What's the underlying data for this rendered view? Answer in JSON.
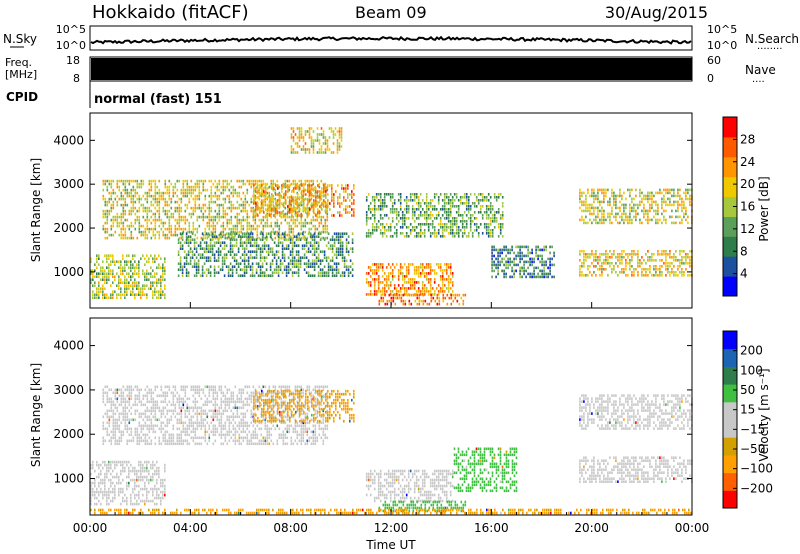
{
  "header": {
    "station": "Hokkaido (fitACF)",
    "beam": "Beam 09",
    "date": "30/Aug/2015"
  },
  "noise_panel": {
    "left_label": "N.Sky",
    "left_ticks": [
      "10^5",
      "10^0"
    ],
    "right_ticks": [
      "10^5",
      "10^0"
    ],
    "right_label": "N.Search",
    "right_dots": "........"
  },
  "freq_panel": {
    "left_label_1": "Freq.",
    "left_label_2": "[MHz]",
    "left_ticks": [
      "18",
      "8"
    ],
    "right_ticks": [
      "60",
      "0"
    ],
    "right_label": "Nave",
    "right_dots": "....",
    "color_fill": "#000000"
  },
  "cpid_panel": {
    "label": "CPID",
    "mode_text": "normal (fast) 151"
  },
  "chart_data": [
    {
      "type": "heatmap",
      "id": "power",
      "ylabel": "Slant Range [km]",
      "ylim": [
        200,
        4600
      ],
      "yticks": [
        "1000",
        "2000",
        "3000",
        "4000"
      ],
      "xlim": [
        "00:00",
        "24:00"
      ],
      "colorbar": {
        "label": "Power [dB]",
        "ticks": [
          "28",
          "24",
          "20",
          "16",
          "12",
          "8",
          "4"
        ],
        "colors": [
          "#0000ff",
          "#1e50a0",
          "#2e7d4a",
          "#5aa05a",
          "#a5c83c",
          "#f0c800",
          "#ff9600",
          "#ff5a00",
          "#ff0000"
        ]
      },
      "echo_regions": [
        {
          "t0": 0.0,
          "t1": 3.0,
          "r0": 400,
          "r1": 1400,
          "level": 18
        },
        {
          "t0": 0.5,
          "t1": 9.5,
          "r0": 1800,
          "r1": 3100,
          "level": 20
        },
        {
          "t0": 3.5,
          "t1": 10.5,
          "r0": 900,
          "r1": 1900,
          "level": 12
        },
        {
          "t0": 6.5,
          "t1": 10.5,
          "r0": 2300,
          "r1": 3000,
          "level": 26
        },
        {
          "t0": 8.0,
          "t1": 10.0,
          "r0": 3700,
          "r1": 4300,
          "level": 22
        },
        {
          "t0": 11.0,
          "t1": 14.5,
          "r0": 500,
          "r1": 1200,
          "level": 26
        },
        {
          "t0": 11.5,
          "t1": 15.0,
          "r0": 250,
          "r1": 500,
          "level": 28
        },
        {
          "t0": 11.0,
          "t1": 16.5,
          "r0": 1800,
          "r1": 2800,
          "level": 14
        },
        {
          "t0": 16.0,
          "t1": 18.5,
          "r0": 900,
          "r1": 1600,
          "level": 10
        },
        {
          "t0": 19.5,
          "t1": 24.0,
          "r0": 900,
          "r1": 1500,
          "level": 22
        },
        {
          "t0": 19.5,
          "t1": 24.0,
          "r0": 2100,
          "r1": 2900,
          "level": 20
        }
      ]
    },
    {
      "type": "heatmap",
      "id": "velocity",
      "ylabel": "Slant Range [km]",
      "xlabel": "Time UT",
      "ylim": [
        200,
        4600
      ],
      "yticks": [
        "1000",
        "2000",
        "3000",
        "4000"
      ],
      "xticks": [
        "00:00",
        "04:00",
        "08:00",
        "12:00",
        "16:00",
        "20:00",
        "00:00"
      ],
      "colorbar": {
        "label": "Velocity [m s⁻¹]",
        "ticks": [
          "200",
          "100",
          "50",
          "15",
          "−15",
          "−50",
          "−100",
          "−200"
        ],
        "colors": [
          "#ff0000",
          "#ff6000",
          "#ffa000",
          "#d2a000",
          "#c8c8c8",
          "#c8c8c8",
          "#40c040",
          "#2e7d4a",
          "#1e64b4",
          "#0000ff"
        ]
      },
      "echo_regions": [
        {
          "t0": 0.0,
          "t1": 3.0,
          "r0": 400,
          "r1": 1400,
          "vel": 0
        },
        {
          "t0": 0.5,
          "t1": 9.5,
          "r0": 1800,
          "r1": 3100,
          "vel": 0
        },
        {
          "t0": 6.5,
          "t1": 10.5,
          "r0": 2300,
          "r1": 3000,
          "vel": -30
        },
        {
          "t0": 11.0,
          "t1": 14.5,
          "r0": 500,
          "r1": 1200,
          "vel": 0
        },
        {
          "t0": 11.5,
          "t1": 15.0,
          "r0": 250,
          "r1": 500,
          "vel": 40
        },
        {
          "t0": 14.5,
          "t1": 17.0,
          "r0": 700,
          "r1": 1700,
          "vel": 40
        },
        {
          "t0": 19.5,
          "t1": 24.0,
          "r0": 900,
          "r1": 1500,
          "vel": 0
        },
        {
          "t0": 19.5,
          "t1": 24.0,
          "r0": 2100,
          "r1": 2900,
          "vel": 0
        },
        {
          "t0": 0.0,
          "t1": 24.0,
          "r0": 220,
          "r1": 320,
          "vel": -30
        }
      ]
    }
  ]
}
